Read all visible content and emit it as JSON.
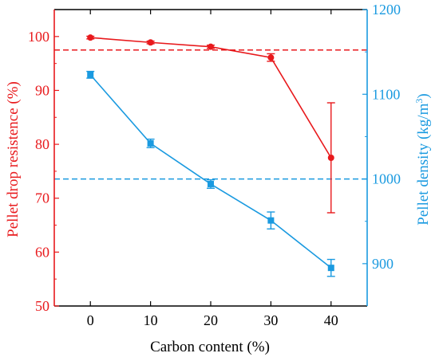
{
  "chart_data": {
    "type": "line",
    "xlabel": "Carbon content (%)",
    "x": [
      0,
      10,
      20,
      30,
      40
    ],
    "xlim": [
      -6,
      46
    ],
    "xticks": [
      "0",
      "10",
      "20",
      "30",
      "40"
    ],
    "left_axis": {
      "label": "Pellet drop resistence (%)",
      "color": "#e8191c",
      "ylim": [
        50,
        105
      ],
      "ticks": [
        "50",
        "60",
        "70",
        "80",
        "90",
        "100"
      ]
    },
    "right_axis": {
      "label_main": "Pellet density (kg/m",
      "label_sup": "3",
      "label_end": ")",
      "color": "#1a9ae0",
      "ylim": [
        850,
        1200
      ],
      "ticks": [
        "900",
        "1000",
        "1100",
        "1200"
      ]
    },
    "series": [
      {
        "axis": "left",
        "color": "#e8191c",
        "marker": "circle",
        "values": [
          99.8,
          98.9,
          98.1,
          96.1,
          77.5
        ],
        "error": [
          0.25,
          0.25,
          0.3,
          0.7,
          10.2
        ]
      },
      {
        "axis": "right",
        "color": "#1a9ae0",
        "marker": "square",
        "values": [
          1123,
          1042,
          994,
          951,
          895
        ],
        "error": [
          4,
          5,
          5,
          10,
          10
        ]
      }
    ],
    "reference_lines": [
      {
        "axis": "left",
        "value": 97.5,
        "color": "#e8191c",
        "style": "dashed"
      },
      {
        "axis": "right",
        "value": 1000,
        "color": "#1a9ae0",
        "style": "dashed"
      }
    ],
    "grid": false,
    "legend": "none"
  }
}
